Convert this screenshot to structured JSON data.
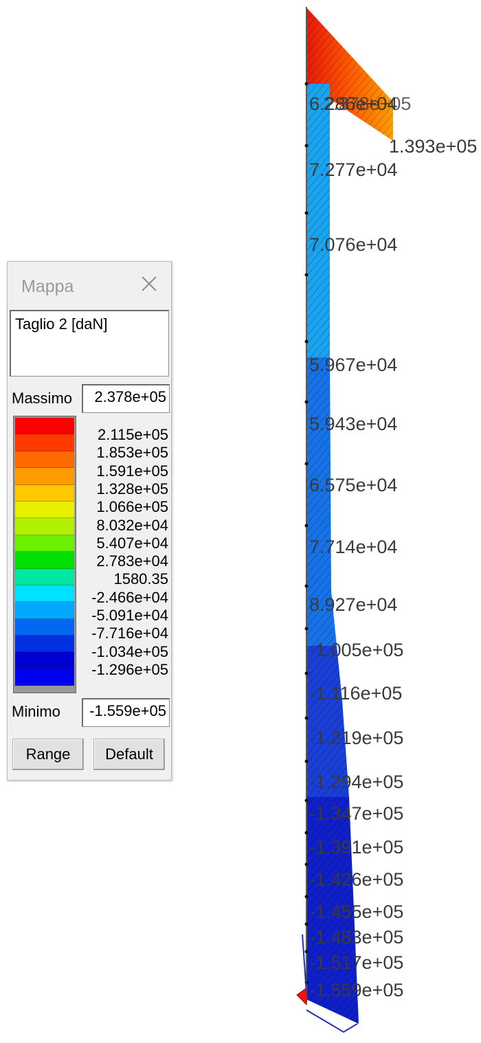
{
  "panel": {
    "title": "Mappa",
    "quantity": "Taglio 2 [daN]",
    "max_label": "Massimo",
    "max_value": "2.378e+05",
    "min_label": "Minimo",
    "min_value": "-1.559e+05",
    "range_button": "Range",
    "default_button": "Default",
    "scale_ticks": [
      "2.115e+05",
      "1.853e+05",
      "1.591e+05",
      "1.328e+05",
      "1.066e+05",
      "8.032e+04",
      "5.407e+04",
      "2.783e+04",
      "1580.35",
      "-2.466e+04",
      "-5.091e+04",
      "-7.716e+04",
      "-1.034e+05",
      "-1.296e+05"
    ],
    "scale_colors": [
      "#ff0000",
      "#ff3a00",
      "#ff6a00",
      "#ff9a00",
      "#ffc800",
      "#e8f000",
      "#b0f000",
      "#6af000",
      "#00e000",
      "#00e8a0",
      "#00e0ff",
      "#00a8ff",
      "#0068f0",
      "#0030e0",
      "#0000d0",
      "#0000f0"
    ]
  },
  "diagram": {
    "value_labels": [
      "6.286e+04",
      "1.393e+05",
      "7.277e+04",
      "7.076e+04",
      "5.967e+04",
      "5.943e+04",
      "6.575e+04",
      "7.714e+04",
      "8.927e+04",
      "-1.005e+05",
      "-1.116e+05",
      "-1.219e+05",
      "-1.294e+05",
      "-1.347e+05",
      "-1.391e+05",
      "-1.426e+05",
      "-1.455e+05",
      "-1.483e+05",
      "-1.517e+05",
      "-1.559e+05"
    ],
    "top_overlap_label": "2.378e+05",
    "colors": {
      "red": "#e81a0a",
      "orange": "#ffa000",
      "lightblue": "#1aa4f0",
      "blue": "#1060e0",
      "darkblue": "#1020c8",
      "support": "#ff1010"
    }
  }
}
